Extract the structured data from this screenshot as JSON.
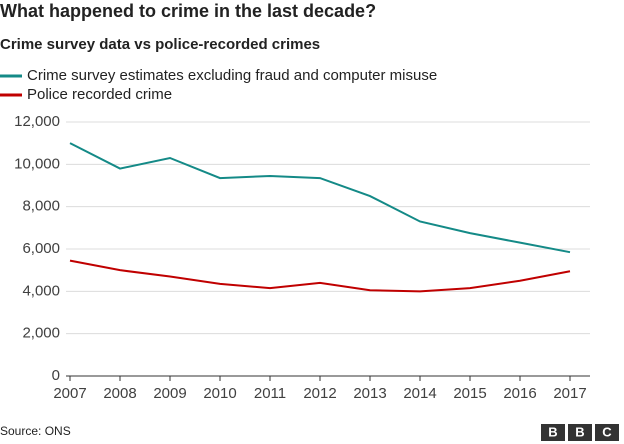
{
  "chart_data": {
    "type": "line",
    "title": "What happened to crime in the last decade?",
    "subtitle": "Crime survey data vs police-recorded crimes",
    "x": [
      2007,
      2008,
      2009,
      2010,
      2011,
      2012,
      2013,
      2014,
      2015,
      2016,
      2017
    ],
    "series": [
      {
        "name": "Crime survey estimates excluding fraud and computer misuse",
        "color": "#148a87",
        "values": [
          11000,
          9800,
          10300,
          9350,
          9450,
          9350,
          8500,
          7300,
          6750,
          6300,
          5850
        ]
      },
      {
        "name": "Police recorded crime",
        "color": "#c00000",
        "values": [
          5450,
          5000,
          4700,
          4350,
          4150,
          4400,
          4050,
          4000,
          4150,
          4500,
          4950
        ]
      }
    ],
    "xlim": [
      2007,
      2017
    ],
    "xticks": [
      2007,
      2008,
      2009,
      2010,
      2011,
      2012,
      2013,
      2014,
      2015,
      2016,
      2017
    ],
    "ylim": [
      0,
      12000
    ],
    "yticks": [
      0,
      {
        "value": 2000,
        "label": "2,000"
      },
      {
        "value": 4000,
        "label": "4,000"
      },
      {
        "value": 6000,
        "label": "6,000"
      },
      {
        "value": 8000,
        "label": "8,000"
      },
      {
        "value": 10000,
        "label": "10,000"
      },
      {
        "value": 12000,
        "label": "12,000"
      }
    ],
    "grid": true,
    "legend": "top",
    "source": "Source: ONS",
    "logo": [
      "B",
      "B",
      "C"
    ]
  }
}
